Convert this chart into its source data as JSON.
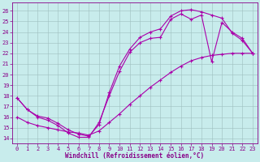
{
  "xlabel": "Windchill (Refroidissement éolien,°C)",
  "bg_color": "#c8ecec",
  "line_color": "#aa00aa",
  "xlim": [
    -0.5,
    23.5
  ],
  "ylim": [
    13.5,
    26.8
  ],
  "xticks": [
    0,
    1,
    2,
    3,
    4,
    5,
    6,
    7,
    8,
    9,
    10,
    11,
    12,
    13,
    14,
    15,
    16,
    17,
    18,
    19,
    20,
    21,
    22,
    23
  ],
  "yticks": [
    14,
    15,
    16,
    17,
    18,
    19,
    20,
    21,
    22,
    23,
    24,
    25,
    26
  ],
  "curve_zigzag_x": [
    0,
    1,
    2,
    3,
    4,
    5,
    6,
    7,
    8,
    9,
    10,
    11,
    12,
    13,
    14,
    15,
    16,
    17,
    18,
    19,
    20,
    21,
    22,
    23
  ],
  "curve_zigzag_y": [
    17.8,
    16.7,
    16.0,
    15.7,
    15.2,
    14.5,
    14.1,
    14.1,
    15.5,
    18.0,
    20.3,
    22.1,
    23.0,
    23.4,
    23.5,
    25.2,
    25.7,
    25.2,
    25.6,
    21.2,
    24.9,
    24.0,
    23.4,
    22.0
  ],
  "curve_upper_x": [
    0,
    1,
    2,
    3,
    4,
    5,
    6,
    7,
    8,
    9,
    10,
    11,
    12,
    13,
    14,
    15,
    16,
    17,
    18,
    19,
    20,
    21,
    22,
    23
  ],
  "curve_upper_y": [
    17.8,
    16.7,
    16.1,
    15.9,
    15.4,
    14.8,
    14.4,
    14.2,
    15.3,
    18.3,
    20.8,
    22.4,
    23.5,
    24.0,
    24.3,
    25.5,
    26.0,
    26.1,
    25.9,
    25.6,
    25.3,
    23.9,
    23.2,
    22.0
  ],
  "curve_diag_x": [
    0,
    1,
    2,
    3,
    4,
    5,
    6,
    7,
    8,
    9,
    10,
    11,
    12,
    13,
    14,
    15,
    16,
    17,
    18,
    19,
    20,
    21,
    22,
    23
  ],
  "curve_diag_y": [
    16.0,
    15.5,
    15.2,
    15.0,
    14.8,
    14.6,
    14.5,
    14.3,
    14.7,
    15.5,
    16.3,
    17.2,
    18.0,
    18.8,
    19.5,
    20.2,
    20.8,
    21.3,
    21.6,
    21.8,
    21.9,
    22.0,
    22.0,
    22.0
  ],
  "font_color": "#880088"
}
